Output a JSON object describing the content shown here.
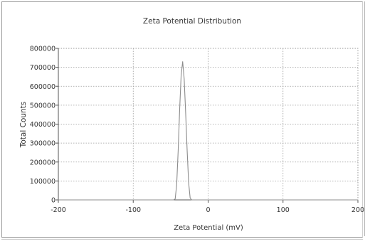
{
  "chart_data": {
    "type": "line",
    "title": "Zeta Potential Distribution",
    "xlabel": "Zeta Potential (mV)",
    "ylabel": "Total Counts",
    "xlim": [
      -200,
      200
    ],
    "ylim": [
      0,
      800000
    ],
    "x_ticks": [
      -200,
      -100,
      0,
      100,
      200
    ],
    "x_tick_labels": [
      "-200",
      "-100",
      "0",
      "100",
      "200"
    ],
    "y_ticks": [
      0,
      100000,
      200000,
      300000,
      400000,
      500000,
      600000,
      700000,
      800000
    ],
    "y_tick_labels": [
      "0",
      "100000",
      "200000",
      "300000",
      "400000",
      "500000",
      "600000",
      "700000",
      "800000"
    ],
    "grid": true,
    "legend": "none",
    "series": [
      {
        "color": "#8c8c8c",
        "x": [
          -200,
          -60,
          -46,
          -44,
          -42,
          -40,
          -38,
          -36,
          -34,
          -32,
          -30,
          -28,
          -26,
          -24,
          -22,
          200
        ],
        "y": [
          0,
          0,
          0,
          5000,
          80000,
          260000,
          480000,
          660000,
          730000,
          640000,
          460000,
          260000,
          90000,
          10000,
          0,
          0
        ]
      }
    ]
  }
}
